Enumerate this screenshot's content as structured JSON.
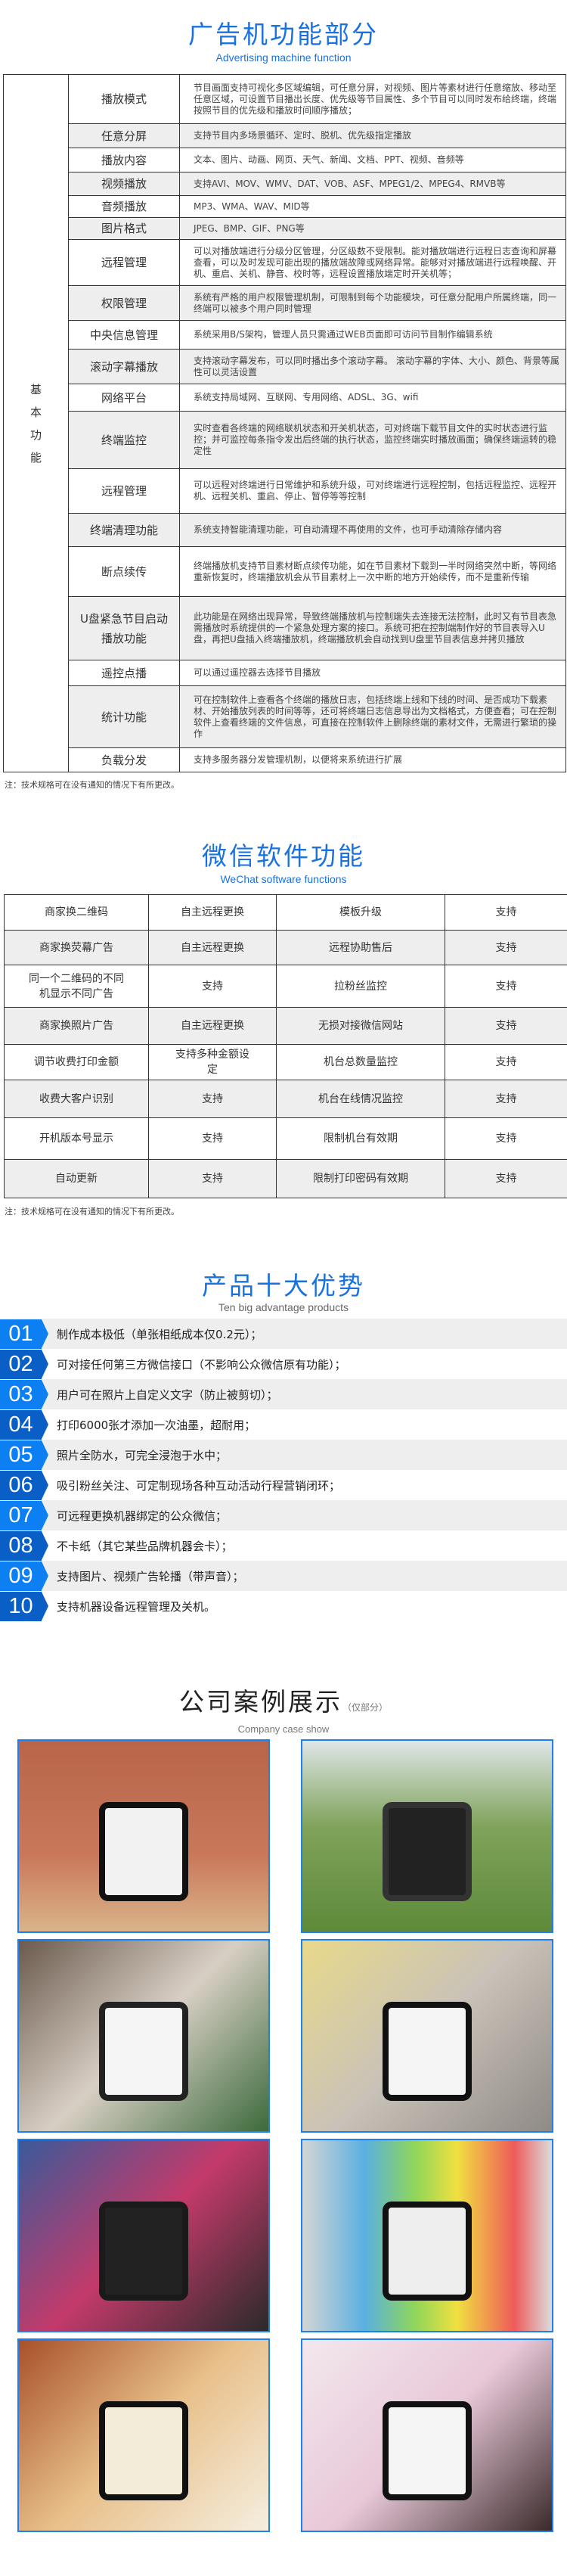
{
  "section1": {
    "title": "广告机功能部分",
    "subtitle": "Advertising machine function",
    "category": "基本功能",
    "rows": [
      {
        "feature": "播放模式",
        "desc": "节目画面支持可视化多区域编辑，可任意分屏，对视频、图片等素材进行任意缩放、移动至任意区域，可设置节目播出长度、优先级等节目属性、多个节目可以同时发布给终端，终端按照节目的优先级和播放时间顺序播放；"
      },
      {
        "feature": "任意分屏",
        "desc": "支持节目内多场景循环、定时、脱机、优先级指定播放"
      },
      {
        "feature": "播放内容",
        "desc": "文本、图片、动画、网页、天气、新闻、文档、PPT、视频、音频等"
      },
      {
        "feature": "视频播放",
        "desc": "支持AVI、MOV、WMV、DAT、VOB、ASF、MPEG1/2、MPEG4、RMVB等"
      },
      {
        "feature": "音频播放",
        "desc": "MP3、WMA、WAV、MID等"
      },
      {
        "feature": "图片格式",
        "desc": "JPEG、BMP、GIF、PNG等"
      },
      {
        "feature": "远程管理",
        "desc": "可以对播放端进行分级分区管理，分区级数不受限制。能对播放端进行远程日志查询和屏幕查看，可以及时发现可能出现的播放端故障或网络异常。能够对对播放端进行远程唤醒、开机、重启、关机、静音、校时等，远程设置播放端定时开关机等；"
      },
      {
        "feature": "权限管理",
        "desc": "系统有严格的用户权限管理机制，可限制到每个功能模块，可任意分配用户所属终端，同一终端可以被多个用户同时管理"
      },
      {
        "feature": "中央信息管理",
        "desc": "系统采用B/S架构，管理人员只需通过WEB页面即可访问节目制作编辑系统"
      },
      {
        "feature": "滚动字幕播放",
        "desc": "支持滚动字幕发布，可以同时播出多个滚动字幕。 滚动字幕的字体、大小、颜色、背景等属性可以灵活设置"
      },
      {
        "feature": "网络平台",
        "desc": "系统支持局域网、互联网、专用网络、ADSL、3G、wifi"
      },
      {
        "feature": "终端监控",
        "desc": "实时查看各终端的网络联机状态和开关机状态，可对终端下载节目文件的实时状态进行监控；并可监控每条指令发出后终端的执行状态，监控终端实时播放画面；确保终端运转的稳定性"
      },
      {
        "feature": "远程管理",
        "desc": "可以远程对终端进行日常维护和系统升级，可对终端进行远程控制，包括远程监控、远程开机、远程关机、重启、停止、暂停等等控制"
      },
      {
        "feature": "终端清理功能",
        "desc": "系统支持智能清理功能，可自动清理不再使用的文件，也可手动清除存储内容"
      },
      {
        "feature": "断点续传",
        "desc": "终端播放机支持节目素材断点续传功能，如在节目素材下载到一半时网络突然中断，等网络重新恢复时，终端播放机会从节目素材上一次中断的地方开始续传，而不是重新传输"
      },
      {
        "feature": "U盘紧急节目启动播放功能",
        "desc": "此功能是在网络出现异常，导致终端播放机与控制端失去连接无法控制，此时又有节目表急需播放时系统提供的一个紧急处理方案的接口。系统可把在控制端制作好的节目表导入U盘，再把U盘插入终端播放机，终端播放机会自动找到U盘里节目表信息并拷贝播放"
      },
      {
        "feature": "遥控点播",
        "desc": "可以通过遥控器去选择节目播放"
      },
      {
        "feature": "统计功能",
        "desc": "可在控制软件上查看各个终端的播放日志，包括终端上线和下线的时间、是否成功下载素材、开始播放列表的时间等等，还可将终端日志信息导出为文档格式，方便查看；可在控制软件上查看终端的文件信息，可直接在控制软件上删除终端的素材文件，无需进行繁琐的操作"
      },
      {
        "feature": "负载分发",
        "desc": "支持多服务器分发管理机制，以便将来系统进行扩展"
      }
    ],
    "note": "注：技术规格可在没有通知的情况下有所更改。"
  },
  "section2": {
    "title": "微信软件功能",
    "subtitle": "WeChat software functions",
    "rows": [
      [
        "商家换二维码",
        "自主远程更换",
        "模板升级",
        "支持"
      ],
      [
        "商家换荧幕广告",
        "自主远程更换",
        "远程协助售后",
        "支持"
      ],
      [
        "同一个二维码的不同机显示不同广告",
        "支持",
        "拉粉丝监控",
        "支持"
      ],
      [
        "商家换照片广告",
        "自主远程更换",
        "无损对接微信网站",
        "支持"
      ],
      [
        "调节收费打印金额",
        "支持多种金额设定",
        "机台总数量监控",
        "支持"
      ],
      [
        "收费大客户识别",
        "支持",
        "机台在线情况监控",
        "支持"
      ],
      [
        "开机版本号显示",
        "支持",
        "限制机台有效期",
        "支持"
      ],
      [
        "自动更新",
        "支持",
        "限制打印密码有效期",
        "支持"
      ]
    ],
    "note": "注：技术规格可在没有通知的情况下有所更改。"
  },
  "section3": {
    "title": "产品十大优势",
    "subtitle": "Ten big advantage products",
    "badge_colors": {
      "odd": "#0c7ff2",
      "even": "#0a5fc6"
    },
    "items": [
      {
        "num": "01",
        "text": "制作成本极低（单张相纸成本仅0.2元）；"
      },
      {
        "num": "02",
        "text": "可对接任何第三方微信接口（不影响公众微信原有功能）；"
      },
      {
        "num": "03",
        "text": "用户可在照片上自定义文字（防止被剪切）；"
      },
      {
        "num": "04",
        "text": "打印6000张才添加一次油墨，超耐用；"
      },
      {
        "num": "05",
        "text": "照片全防水，可完全浸泡于水中；"
      },
      {
        "num": "06",
        "text": "吸引粉丝关注、可定制现场各种互动活动行程营销闭环；"
      },
      {
        "num": "07",
        "text": "可远程更换机器绑定的公众微信；"
      },
      {
        "num": "08",
        "text": "不卡纸（其它某些品牌机器会卡）；"
      },
      {
        "num": "09",
        "text": "支持图片、视频广告轮播（带声音）；"
      },
      {
        "num": "10",
        "text": "支持机器设备远程管理及关机。"
      }
    ]
  },
  "section4": {
    "title": "公司案例展示",
    "title_note": "（仅部分）",
    "subtitle": "Company case show",
    "frame_color": "#1e7ff0",
    "photos": [
      {
        "name": "case-photo-desktop-kiosk-brick-wall"
      },
      {
        "name": "case-photo-outdoor-standing-kiosk"
      },
      {
        "name": "case-photo-mall-kiosk-crowd"
      },
      {
        "name": "case-photo-newspaper-event-kiosk"
      },
      {
        "name": "case-photo-exhibition-twin-kiosks"
      },
      {
        "name": "case-photo-colorful-kiosks-row"
      },
      {
        "name": "case-photo-hotel-lobby-kiosk"
      },
      {
        "name": "case-photo-wedding-event-kiosk"
      }
    ]
  }
}
